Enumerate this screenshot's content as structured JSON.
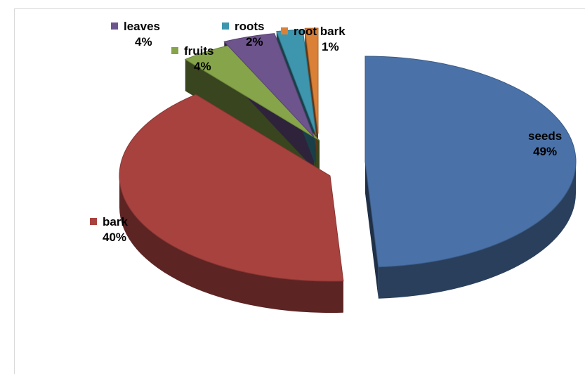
{
  "chart_data": {
    "type": "pie",
    "style": "3d-exploded",
    "slices": [
      {
        "label": "seeds",
        "value": 49,
        "value_label": "49%",
        "color": "#4a72a8"
      },
      {
        "label": "bark",
        "value": 40,
        "value_label": "40%",
        "color": "#a8423f"
      },
      {
        "label": "fruits",
        "value": 4,
        "value_label": "4%",
        "color": "#86a44a"
      },
      {
        "label": "leaves",
        "value": 4,
        "value_label": "4%",
        "color": "#6e548d"
      },
      {
        "label": "roots",
        "value": 2,
        "value_label": "2%",
        "color": "#3d96ae"
      },
      {
        "label": "root bark",
        "value": 1,
        "value_label": "1%",
        "color": "#da8137"
      }
    ]
  }
}
